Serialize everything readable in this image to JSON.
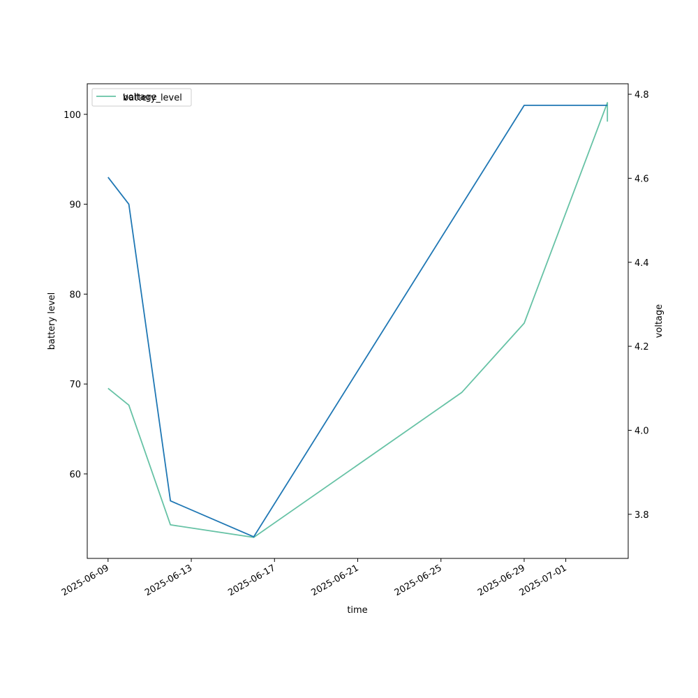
{
  "chart_data": {
    "type": "line",
    "xlabel": "time",
    "ylabel_left": "battery level",
    "ylabel_right": "voltage",
    "x_axis_type": "date",
    "x_ticks": [
      "2025-06-09",
      "2025-06-13",
      "2025-06-17",
      "2025-06-21",
      "2025-06-25",
      "2025-06-29",
      "2025-07-01"
    ],
    "xlim": [
      "2025-06-08",
      "2025-07-04"
    ],
    "y_left_ticks": [
      60,
      70,
      80,
      90,
      100
    ],
    "y_left_lim": [
      50.6,
      103.4
    ],
    "y_right_ticks": [
      3.8,
      4.0,
      4.2,
      4.4,
      4.6,
      4.8
    ],
    "y_right_lim": [
      3.695,
      4.825
    ],
    "grid": false,
    "legend_position": "top-left",
    "legend_overlap": true,
    "series": [
      {
        "name": "battery_level",
        "axis": "left",
        "color": "#1f77b4",
        "points": [
          {
            "x": "2025-06-09",
            "y": 93
          },
          {
            "x": "2025-06-10",
            "y": 90
          },
          {
            "x": "2025-06-12",
            "y": 57
          },
          {
            "x": "2025-06-16",
            "y": 53
          },
          {
            "x": "2025-06-29",
            "y": 101
          },
          {
            "x": "2025-07-03",
            "y": 101
          }
        ]
      },
      {
        "name": "voltage",
        "axis": "right",
        "color": "#66c2a5",
        "points": [
          {
            "x": "2025-06-09",
            "y": 4.1
          },
          {
            "x": "2025-06-10",
            "y": 4.06
          },
          {
            "x": "2025-06-12",
            "y": 3.775
          },
          {
            "x": "2025-06-16",
            "y": 3.745
          },
          {
            "x": "2025-06-26",
            "y": 4.09
          },
          {
            "x": "2025-06-29",
            "y": 4.255
          },
          {
            "x": "2025-07-03",
            "y": 4.78
          },
          {
            "x": "2025-07-03",
            "y": 4.735
          }
        ]
      }
    ]
  }
}
